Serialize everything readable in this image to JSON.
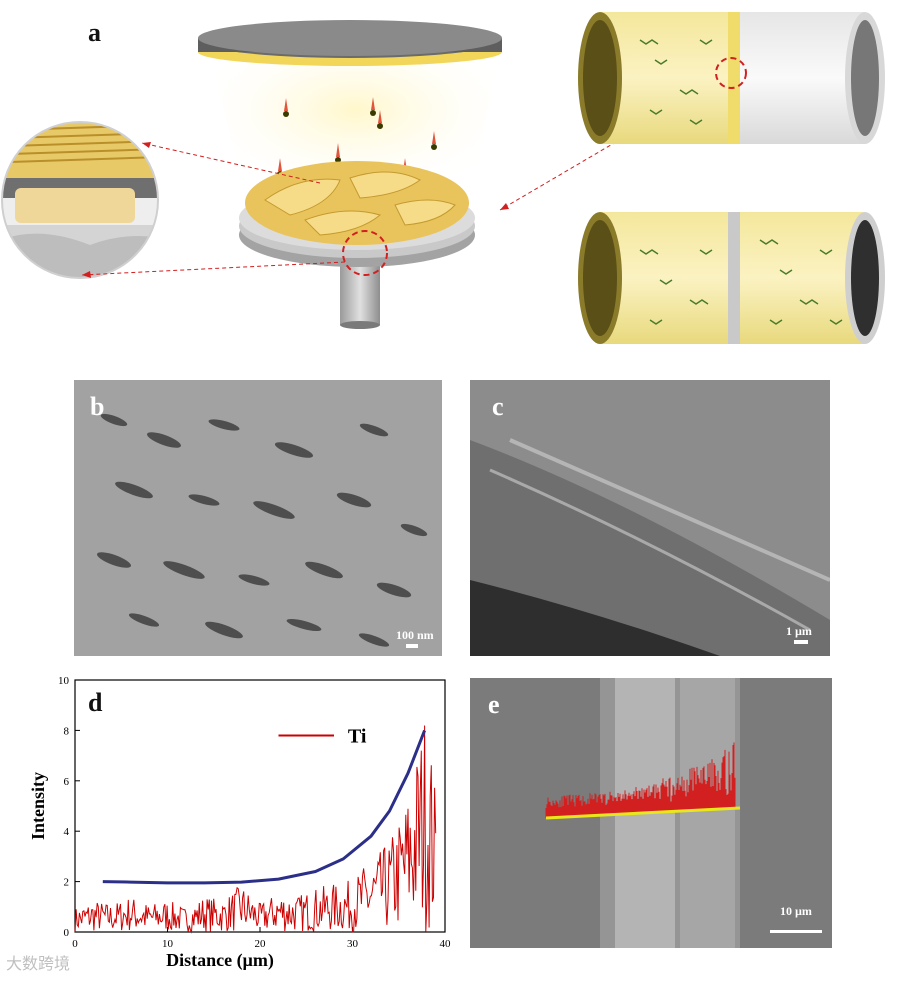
{
  "panels": {
    "a": {
      "label": "a"
    },
    "b": {
      "label": "b",
      "scale": "100 nm"
    },
    "c": {
      "label": "c",
      "scale": "1 µm"
    },
    "d": {
      "label": "d"
    },
    "e": {
      "label": "e",
      "scale": "10 µm"
    }
  },
  "chart_data": {
    "type": "line",
    "xlabel": "Distance (µm)",
    "ylabel": "Intensity",
    "xlim": [
      0,
      40
    ],
    "ylim": [
      0,
      10
    ],
    "xticks": [
      "0",
      "10",
      "20",
      "30",
      "40"
    ],
    "yticks": [
      "0",
      "2",
      "4",
      "6",
      "8",
      "10"
    ],
    "legend": {
      "entry": "Ti",
      "placement": "top-center",
      "color": "#cc0000"
    },
    "series": [
      {
        "name": "Ti",
        "color": "#cc0000",
        "x": [
          0,
          2,
          4,
          6,
          8,
          10,
          12,
          14,
          16,
          18,
          20,
          22,
          24,
          26,
          28,
          30,
          31,
          32,
          33,
          34,
          35,
          36,
          37,
          38,
          39
        ],
        "values": [
          0.6,
          0.8,
          0.7,
          0.9,
          0.7,
          0.8,
          0.6,
          0.9,
          0.8,
          1.2,
          0.7,
          1.0,
          0.9,
          1.1,
          1.2,
          1.3,
          1.6,
          1.8,
          2.0,
          2.3,
          2.8,
          3.5,
          4.6,
          5.8,
          3.5
        ]
      },
      {
        "color": "#2b2f88",
        "x": [
          3,
          6,
          10,
          14,
          18,
          22,
          26,
          29,
          32,
          34,
          36,
          37.8
        ],
        "values": [
          2.0,
          1.98,
          1.95,
          1.95,
          1.98,
          2.1,
          2.4,
          2.9,
          3.8,
          4.8,
          6.3,
          8.0
        ]
      }
    ]
  },
  "watermark": "大数跨境",
  "colors": {
    "ti_line": "#cc0000",
    "fit_curve": "#2b2f88",
    "overlay_yellow": "#e8e61c"
  }
}
